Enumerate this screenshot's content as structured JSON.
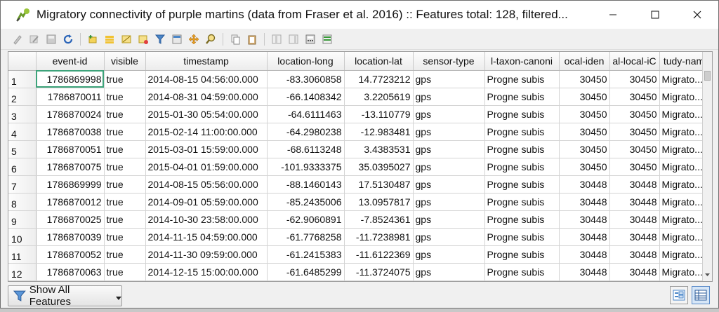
{
  "window": {
    "title": "Migratory connectivity of purple martins (data from Fraser et al. 2016) :: Features total: 128, filtered...",
    "controls": [
      "minimize",
      "maximize",
      "close"
    ]
  },
  "toolbar": {
    "icons": [
      "edit-pencil-icon",
      "multi-edit-icon",
      "save-icon",
      "reload-icon",
      "add-feature-icon",
      "delete-feature-icon",
      "select-expression-icon",
      "select-all-icon",
      "invert-selection-icon",
      "deselect-icon",
      "filter-icon",
      "move-top-icon",
      "pan-to-selected-icon",
      "zoom-to-selected-icon",
      "copy-icon",
      "paste-icon",
      "new-field-icon",
      "delete-field-icon",
      "field-calculator-icon",
      "conditional-format-icon"
    ]
  },
  "table": {
    "columns": [
      "event-id",
      "visible",
      "timestamp",
      "location-long",
      "location-lat",
      "sensor-type",
      "l-taxon-canoni",
      "ocal-iden",
      "al-local-iС",
      "tudy-nam"
    ],
    "rows": [
      {
        "n": "1",
        "cells": [
          "1786869998",
          "true",
          "2014-08-15 04:56:00.000",
          "-83.3060858",
          "14.7723212",
          "gps",
          "Progne subis",
          "30450",
          "30450",
          "Migrato..."
        ]
      },
      {
        "n": "2",
        "cells": [
          "1786870011",
          "true",
          "2014-08-31 04:59:00.000",
          "-66.1408342",
          "3.2205619",
          "gps",
          "Progne subis",
          "30450",
          "30450",
          "Migrato..."
        ]
      },
      {
        "n": "3",
        "cells": [
          "1786870024",
          "true",
          "2015-01-30 05:54:00.000",
          "-64.6111463",
          "-13.110779",
          "gps",
          "Progne subis",
          "30450",
          "30450",
          "Migrato..."
        ]
      },
      {
        "n": "4",
        "cells": [
          "1786870038",
          "true",
          "2015-02-14 11:00:00.000",
          "-64.2980238",
          "-12.983481",
          "gps",
          "Progne subis",
          "30450",
          "30450",
          "Migrato..."
        ]
      },
      {
        "n": "5",
        "cells": [
          "1786870051",
          "true",
          "2015-03-01 15:59:00.000",
          "-68.6113248",
          "3.4383531",
          "gps",
          "Progne subis",
          "30450",
          "30450",
          "Migrato..."
        ]
      },
      {
        "n": "6",
        "cells": [
          "1786870075",
          "true",
          "2015-04-01 01:59:00.000",
          "-101.9333375",
          "35.0395027",
          "gps",
          "Progne subis",
          "30450",
          "30450",
          "Migrato..."
        ]
      },
      {
        "n": "7",
        "cells": [
          "1786869999",
          "true",
          "2014-08-15 05:56:00.000",
          "-88.1460143",
          "17.5130487",
          "gps",
          "Progne subis",
          "30448",
          "30448",
          "Migrato..."
        ]
      },
      {
        "n": "8",
        "cells": [
          "1786870012",
          "true",
          "2014-09-01 05:59:00.000",
          "-85.2435006",
          "13.0957817",
          "gps",
          "Progne subis",
          "30448",
          "30448",
          "Migrato..."
        ]
      },
      {
        "n": "9",
        "cells": [
          "1786870025",
          "true",
          "2014-10-30 23:58:00.000",
          "-62.9060891",
          "-7.8524361",
          "gps",
          "Progne subis",
          "30448",
          "30448",
          "Migrato..."
        ]
      },
      {
        "n": "10",
        "cells": [
          "1786870039",
          "true",
          "2014-11-15 04:59:00.000",
          "-61.7768258",
          "-11.7238981",
          "gps",
          "Progne subis",
          "30448",
          "30448",
          "Migrato..."
        ]
      },
      {
        "n": "11",
        "cells": [
          "1786870052",
          "true",
          "2014-11-30 09:59:00.000",
          "-61.2415383",
          "-11.6122369",
          "gps",
          "Progne subis",
          "30448",
          "30448",
          "Migrato..."
        ]
      },
      {
        "n": "12",
        "cells": [
          "1786870063",
          "true",
          "2014-12-15 15:00:00.000",
          "-61.6485299",
          "-11.3724075",
          "gps",
          "Progne subis",
          "30448",
          "30448",
          "Migrato..."
        ]
      }
    ]
  },
  "footer": {
    "filter_button_label": "Show All Features",
    "views": [
      "form-view-icon",
      "table-view-icon"
    ]
  }
}
